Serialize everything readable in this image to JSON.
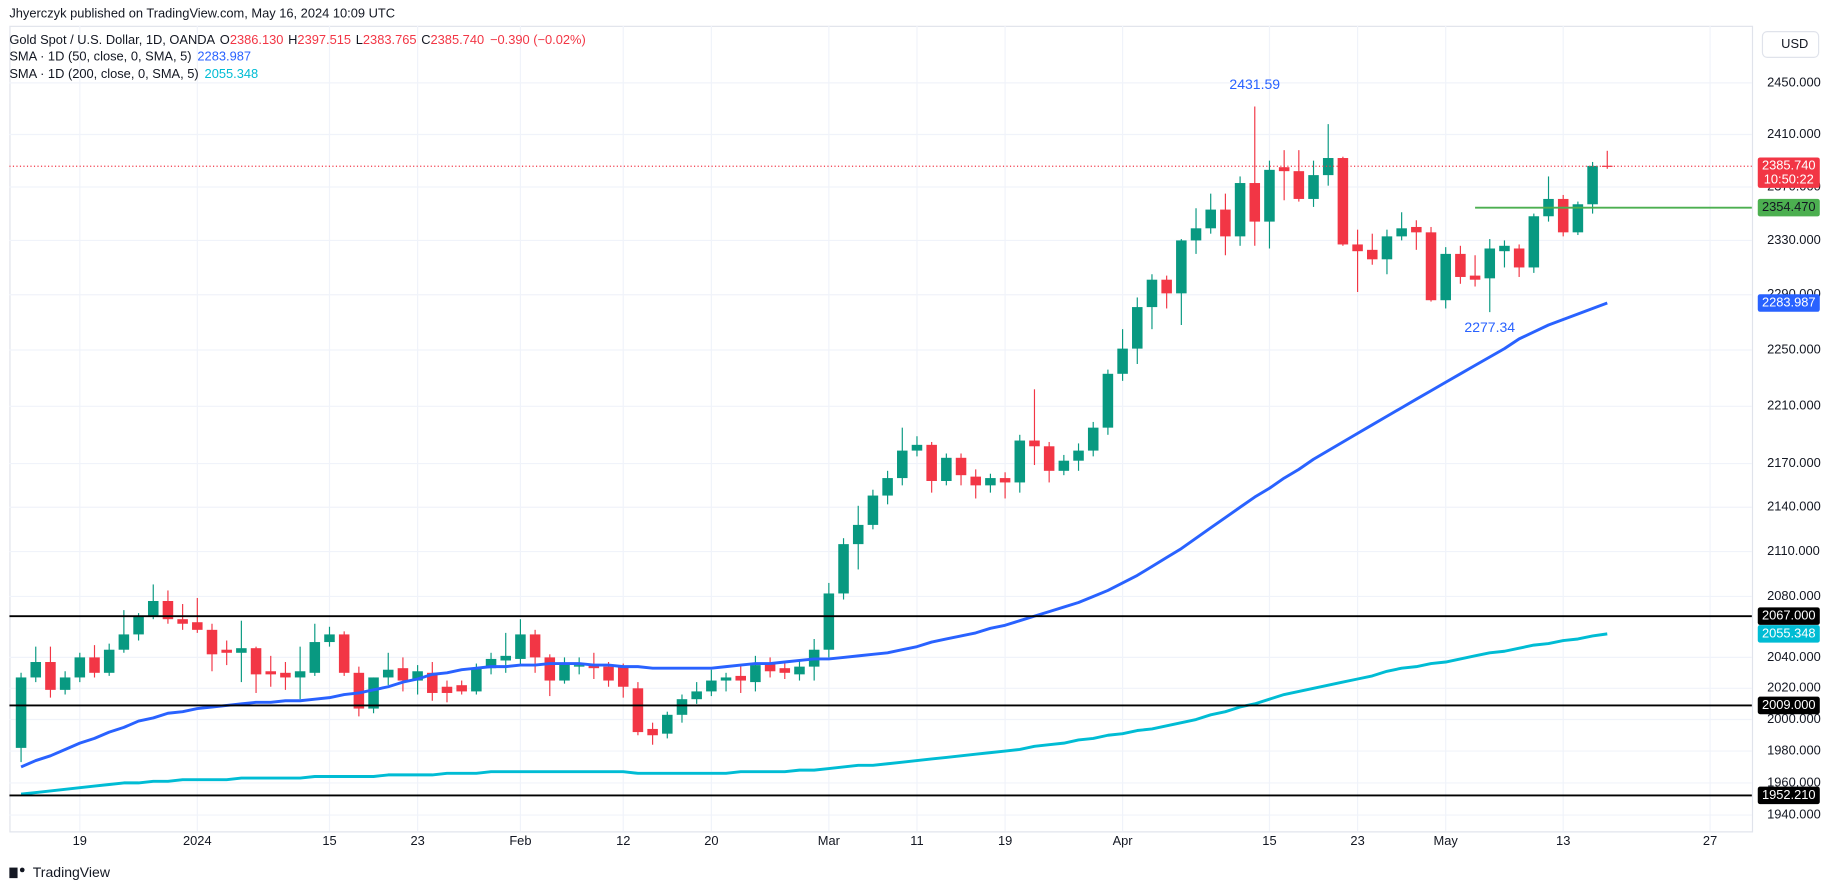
{
  "header": {
    "byline": "Jhyerczyk published on TradingView.com, May 16, 2024 10:09 UTC",
    "currency": "USD",
    "brand": "TradingView"
  },
  "chart_data": {
    "type": "candlestick",
    "legend": {
      "symbol": "Gold Spot / U.S. Dollar, 1D, OANDA",
      "fields": [
        {
          "key": "O",
          "value": "2386.130"
        },
        {
          "key": "H",
          "value": "2397.515"
        },
        {
          "key": "L",
          "value": "2383.765"
        },
        {
          "key": "C",
          "value": "2385.740"
        }
      ],
      "change": "−0.390 (−0.02%)"
    },
    "up_color": "#089981",
    "down_color": "#f23645",
    "log": true,
    "grid": true,
    "ylim": [
      1930,
      2495
    ],
    "yticks": [
      {
        "value": 1940,
        "label": "1940.000"
      },
      {
        "value": 1960,
        "label": "1960.000"
      },
      {
        "value": 1980,
        "label": "1980.000"
      },
      {
        "value": 2000,
        "label": "2000.000"
      },
      {
        "value": 2020,
        "label": "2020.000"
      },
      {
        "value": 2040,
        "label": "2040.000"
      },
      {
        "value": 2080,
        "label": "2080.000"
      },
      {
        "value": 2110,
        "label": "2110.000"
      },
      {
        "value": 2140,
        "label": "2140.000"
      },
      {
        "value": 2170,
        "label": "2170.000"
      },
      {
        "value": 2210,
        "label": "2210.000"
      },
      {
        "value": 2250,
        "label": "2250.000"
      },
      {
        "value": 2290,
        "label": "2290.000"
      },
      {
        "value": 2330,
        "label": "2330.000"
      },
      {
        "value": 2370,
        "label": "2370.000"
      },
      {
        "value": 2410,
        "label": "2410.000"
      },
      {
        "value": 2450,
        "label": "2450.000"
      }
    ],
    "categories": [
      null,
      null,
      null,
      null,
      "19",
      null,
      null,
      null,
      null,
      null,
      null,
      null,
      "2024",
      null,
      null,
      null,
      null,
      null,
      null,
      null,
      null,
      "15",
      null,
      null,
      null,
      null,
      null,
      "23",
      null,
      null,
      null,
      null,
      null,
      null,
      "Feb",
      null,
      null,
      null,
      null,
      null,
      null,
      "12",
      null,
      null,
      null,
      null,
      null,
      "20",
      null,
      null,
      null,
      null,
      null,
      null,
      null,
      "Mar",
      null,
      null,
      null,
      null,
      null,
      "11",
      null,
      null,
      null,
      null,
      null,
      "19",
      null,
      null,
      null,
      null,
      null,
      null,
      null,
      "Apr",
      null,
      null,
      null,
      null,
      null,
      null,
      null,
      null,
      null,
      "15",
      null,
      null,
      null,
      null,
      null,
      "23",
      null,
      null,
      null,
      null,
      null,
      "May",
      null,
      null,
      null,
      null,
      null,
      null,
      null,
      "13",
      null,
      null,
      null,
      null,
      null,
      null,
      null,
      null,
      null,
      "27",
      null,
      null
    ],
    "open": [
      1982,
      2027,
      2037,
      2019,
      2027,
      2040,
      2030,
      2045,
      2055,
      2067,
      2077,
      2065,
      2063,
      2058,
      2045,
      2043,
      2046,
      2031,
      2030,
      2027,
      2030,
      2050,
      2055,
      2030,
      2007,
      2027,
      2033,
      2025,
      2030,
      2021,
      2022,
      2018,
      2033,
      2038,
      2039,
      2055,
      2040,
      2025,
      2034,
      2035,
      2034,
      2034,
      2020,
      1994,
      1991,
      2003,
      2013,
      2018,
      2025,
      2028,
      2024,
      2036,
      2033,
      2029,
      2034,
      2045,
      2082,
      2115,
      2128,
      2148,
      2160,
      2179,
      2183,
      2158,
      2174,
      2161,
      2155,
      2160,
      2157,
      2186,
      2182,
      2165,
      2172,
      2179,
      2195,
      2233,
      2251,
      2281,
      2301,
      2291,
      2330,
      2339,
      2353,
      2333,
      2373,
      2344,
      2385,
      2382,
      2361,
      2379,
      2392,
      2327,
      2323,
      2316,
      2333,
      2340,
      2336,
      2286,
      2320,
      2304,
      2302,
      2322,
      2324,
      2310,
      2348,
      2361,
      2336,
      2357,
      2386.13,
      null,
      null,
      null,
      null,
      null,
      null,
      null,
      null,
      null
    ],
    "high": [
      2030,
      2047,
      2047,
      2031,
      2043,
      2048,
      2049,
      2071,
      2069,
      2088,
      2084,
      2075,
      2079,
      2062,
      2051,
      2064,
      2047,
      2041,
      2037,
      2047,
      2062,
      2060,
      2057,
      2034,
      2027,
      2043,
      2040,
      2035,
      2037,
      2025,
      2025,
      2036,
      2043,
      2056,
      2065,
      2058,
      2042,
      2040,
      2040,
      2043,
      2037,
      2036,
      2024,
      1998,
      2005,
      2016,
      2024,
      2032,
      2030,
      2035,
      2041,
      2040,
      2037,
      2038,
      2052,
      2089,
      2119,
      2141,
      2152,
      2165,
      2195,
      2189,
      2185,
      2177,
      2177,
      2166,
      2163,
      2164,
      2190,
      2222,
      2185,
      2176,
      2184,
      2199,
      2236,
      2265,
      2288,
      2305,
      2304,
      2331,
      2354,
      2365,
      2365,
      2378,
      2431.59,
      2390,
      2398,
      2398,
      2390,
      2418,
      2393,
      2338,
      2335,
      2338,
      2351,
      2345,
      2340,
      2325,
      2326,
      2319,
      2331,
      2330,
      2327,
      2350,
      2378,
      2364,
      2359,
      2389,
      2397.515,
      null,
      null,
      null,
      null,
      null,
      null,
      null,
      null,
      null
    ],
    "low": [
      1973,
      2024,
      2014,
      2016,
      2024,
      2027,
      2028,
      2043,
      2051,
      2065,
      2062,
      2058,
      2056,
      2031,
      2035,
      2024,
      2017,
      2021,
      2019,
      2013,
      2028,
      2047,
      2028,
      2002,
      2004,
      2022,
      2018,
      2016,
      2012,
      2011,
      2016,
      2016,
      2029,
      2030,
      2035,
      2030,
      2015,
      2023,
      2029,
      2026,
      2021,
      2014,
      1990,
      1984,
      1988,
      1998,
      2010,
      2015,
      2018,
      2017,
      2018,
      2027,
      2026,
      2025,
      2025,
      2040,
      2078,
      2098,
      2125,
      2142,
      2155,
      2175,
      2150,
      2155,
      2155,
      2146,
      2150,
      2146,
      2150,
      2169,
      2157,
      2162,
      2165,
      2175,
      2190,
      2228,
      2240,
      2265,
      2280,
      2268,
      2320,
      2335,
      2319,
      2326,
      2326,
      2324,
      2360,
      2359,
      2355,
      2371,
      2326,
      2292,
      2312,
      2305,
      2330,
      2323,
      2285,
      2280,
      2298,
      2296,
      2277.34,
      2310,
      2303,
      2306,
      2344,
      2333,
      2334,
      2350,
      2383.765,
      null,
      null,
      null,
      null,
      null,
      null,
      null,
      null,
      null
    ],
    "close": [
      2027,
      2037,
      2019,
      2027,
      2040,
      2030,
      2045,
      2055,
      2067,
      2077,
      2065,
      2062,
      2058,
      2042,
      2043,
      2046,
      2029,
      2029,
      2027,
      2031,
      2050,
      2055,
      2030,
      2007,
      2027,
      2032,
      2025,
      2031,
      2017,
      2017,
      2018,
      2033,
      2039,
      2041,
      2055,
      2040,
      2025,
      2036,
      2035,
      2033,
      2025,
      2021,
      1992,
      1990,
      2003,
      2013,
      2018,
      2025,
      2027,
      2025,
      2035,
      2031,
      2030,
      2034,
      2045,
      2082,
      2115,
      2128,
      2148,
      2160,
      2179,
      2183,
      2158,
      2174,
      2162,
      2155,
      2160,
      2157,
      2186,
      2182,
      2165,
      2172,
      2179,
      2195,
      2233,
      2251,
      2281,
      2301,
      2291,
      2330,
      2339,
      2353,
      2333,
      2373,
      2344,
      2383,
      2382,
      2361,
      2379,
      2392,
      2327,
      2322,
      2316,
      2333,
      2339,
      2336,
      2286,
      2320,
      2303,
      2301,
      2324,
      2326,
      2310,
      2348,
      2361,
      2336,
      2357,
      2386,
      2385.74,
      null,
      null,
      null,
      null,
      null,
      null,
      null,
      null,
      null
    ],
    "series": [
      {
        "name": "SMA · 1D (50, close, 0, SMA, 5)",
        "color": "#2962ff",
        "last_label": "2283.987",
        "values": [
          1970,
          1974,
          1977,
          1981,
          1985,
          1988,
          1992,
          1995,
          1999,
          2001,
          2004,
          2005,
          2007,
          2008,
          2009,
          2010,
          2011,
          2011,
          2012,
          2012,
          2013,
          2014,
          2016,
          2017,
          2019,
          2021,
          2024,
          2026,
          2029,
          2030,
          2032,
          2033,
          2034,
          2034,
          2035,
          2035,
          2036,
          2036,
          2036,
          2035,
          2035,
          2034,
          2034,
          2033,
          2033,
          2033,
          2033,
          2033,
          2034,
          2035,
          2036,
          2036,
          2037,
          2038,
          2039,
          2039,
          2040,
          2041,
          2042,
          2043,
          2045,
          2047,
          2050,
          2052,
          2054,
          2056,
          2059,
          2061,
          2064,
          2067,
          2070,
          2073,
          2076,
          2080,
          2084,
          2089,
          2094,
          2100,
          2106,
          2112,
          2119,
          2126,
          2133,
          2140,
          2147,
          2153,
          2160,
          2166,
          2173,
          2179,
          2185,
          2191,
          2197,
          2203,
          2209,
          2215,
          2221,
          2227,
          2233,
          2239,
          2245,
          2251,
          2258,
          2263,
          2268,
          2272,
          2276,
          2280,
          2283.987,
          null,
          null,
          null,
          null,
          null,
          null,
          null,
          null,
          null
        ]
      },
      {
        "name": "SMA · 1D (200, close, 0, SMA, 5)",
        "color": "#00bcd4",
        "last_label": "2055.348",
        "values": [
          1953,
          1954,
          1955,
          1956,
          1957,
          1958,
          1959,
          1960,
          1960,
          1961,
          1961,
          1962,
          1962,
          1962,
          1962,
          1963,
          1963,
          1963,
          1963,
          1963,
          1964,
          1964,
          1964,
          1964,
          1964,
          1965,
          1965,
          1965,
          1965,
          1966,
          1966,
          1966,
          1967,
          1967,
          1967,
          1967,
          1967,
          1967,
          1967,
          1967,
          1967,
          1967,
          1966,
          1966,
          1966,
          1966,
          1966,
          1966,
          1966,
          1967,
          1967,
          1967,
          1967,
          1968,
          1968,
          1969,
          1970,
          1971,
          1971,
          1972,
          1973,
          1974,
          1975,
          1976,
          1977,
          1978,
          1979,
          1980,
          1981,
          1983,
          1984,
          1985,
          1987,
          1988,
          1990,
          1991,
          1993,
          1994,
          1996,
          1998,
          2000,
          2003,
          2005,
          2008,
          2010,
          2013,
          2016,
          2018,
          2020,
          2022,
          2024,
          2026,
          2028,
          2031,
          2033,
          2034,
          2036,
          2037,
          2039,
          2041,
          2043,
          2044,
          2046,
          2048,
          2049,
          2051,
          2052,
          2054,
          2055.348,
          null,
          null,
          null,
          null,
          null,
          null,
          null,
          null,
          null
        ]
      }
    ],
    "hlines": [
      {
        "value": 2067,
        "label": "2067.000",
        "color": "#000000"
      },
      {
        "value": 2009,
        "label": "2009.000",
        "color": "#000000"
      },
      {
        "value": 1952.21,
        "label": "1952.210",
        "color": "#000000"
      },
      {
        "value": 2354.47,
        "label": "2354.470",
        "color": "#4caf50",
        "start": 99
      }
    ],
    "price_line": {
      "label": "2385.740",
      "countdown": "10:50:22",
      "color": "#f23645"
    },
    "annotations": [
      {
        "text": "2431.59",
        "value": 2431.59
      },
      {
        "text": "2277.34",
        "value": 2277.34
      }
    ]
  }
}
